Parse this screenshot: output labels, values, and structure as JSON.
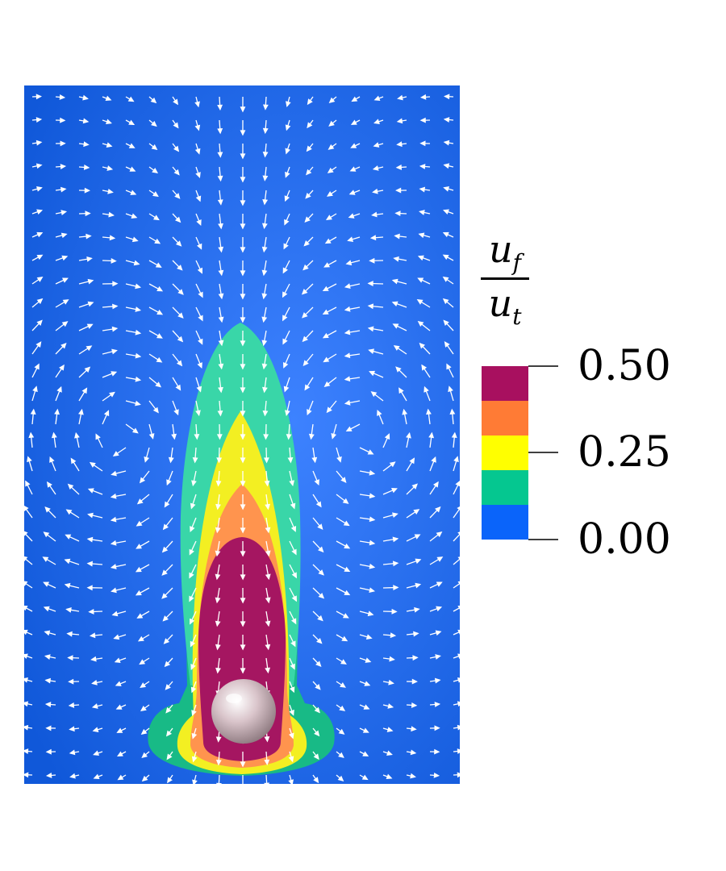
{
  "legend": {
    "title_numerator": "u",
    "title_numerator_sub": "f",
    "title_denominator": "u",
    "title_denominator_sub": "t",
    "ticks": [
      "0.50",
      "0.25",
      "0.00"
    ],
    "bands": [
      {
        "color": "#a8105f"
      },
      {
        "color": "#ff7b35"
      },
      {
        "color": "#ffff00"
      },
      {
        "color": "#05c790"
      },
      {
        "color": "#0a64fa"
      }
    ]
  },
  "field": {
    "background_colors": [
      "#3d82ff",
      "#1058d9"
    ],
    "contour_colors": {
      "green_outer": "#39d6a8",
      "green_base": "#18ba86",
      "yellow": "#f3ef22",
      "orange": "#ff944e",
      "magenta": "#a51661"
    },
    "arrow_color": "#ffffff",
    "sphere_color": "#c9b2b8"
  }
}
